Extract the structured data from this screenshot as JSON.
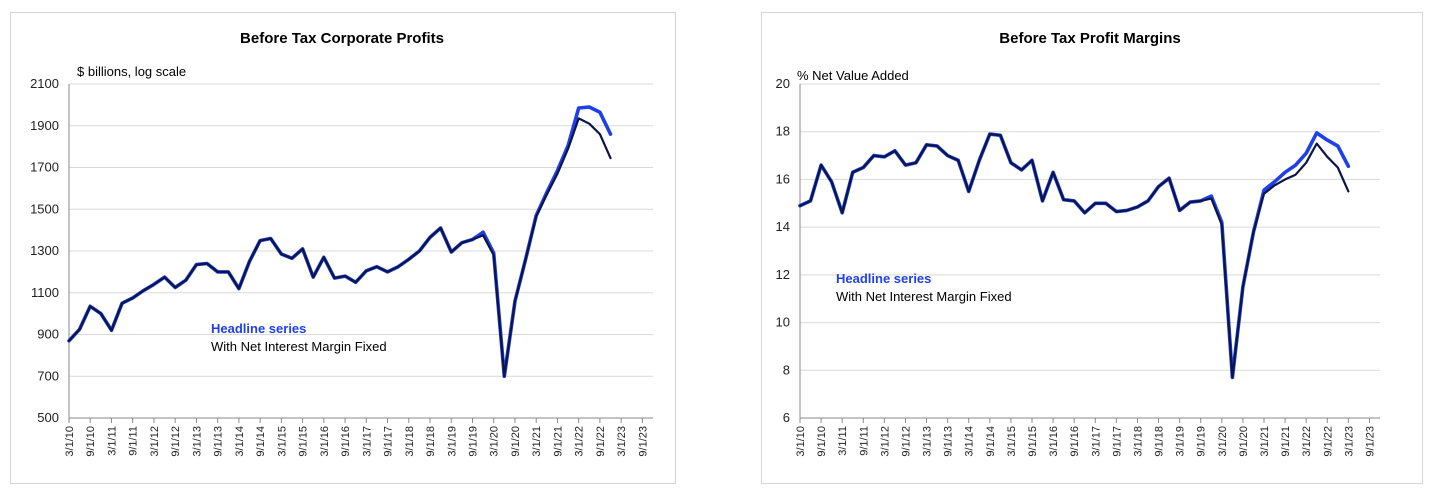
{
  "colors": {
    "headline": "#1f3fe8",
    "fixed": "#000000",
    "overlap": "#0b1546",
    "grid": "#d9d9d9"
  },
  "chart_data": [
    {
      "type": "line",
      "title": "Before Tax Corporate Profits",
      "unit_label": "$ billions, log scale",
      "ylim": [
        500,
        2100
      ],
      "yticks": [
        "500",
        "700",
        "900",
        "1100",
        "1300",
        "1500",
        "1700",
        "1900",
        "2100"
      ],
      "grid": true,
      "x_tick_labels": [
        "3/1/10",
        "9/1/10",
        "3/1/11",
        "9/1/11",
        "3/1/12",
        "9/1/12",
        "3/1/13",
        "9/1/13",
        "3/1/14",
        "9/1/14",
        "3/1/15",
        "9/1/15",
        "3/1/16",
        "9/1/16",
        "3/1/17",
        "9/1/17",
        "3/1/18",
        "9/1/18",
        "3/1/19",
        "9/1/19",
        "3/1/20",
        "9/1/20",
        "3/1/21",
        "9/1/21",
        "3/1/22",
        "9/1/22",
        "3/1/23",
        "9/1/23"
      ],
      "x": [
        "2010Q1",
        "2010Q2",
        "2010Q3",
        "2010Q4",
        "2011Q1",
        "2011Q2",
        "2011Q3",
        "2011Q4",
        "2012Q1",
        "2012Q2",
        "2012Q3",
        "2012Q4",
        "2013Q1",
        "2013Q2",
        "2013Q3",
        "2013Q4",
        "2014Q1",
        "2014Q2",
        "2014Q3",
        "2014Q4",
        "2015Q1",
        "2015Q2",
        "2015Q3",
        "2015Q4",
        "2016Q1",
        "2016Q2",
        "2016Q3",
        "2016Q4",
        "2017Q1",
        "2017Q2",
        "2017Q3",
        "2017Q4",
        "2018Q1",
        "2018Q2",
        "2018Q3",
        "2018Q4",
        "2019Q1",
        "2019Q2",
        "2019Q3",
        "2019Q4",
        "2020Q1",
        "2020Q2",
        "2020Q3",
        "2020Q4",
        "2021Q1",
        "2021Q2",
        "2021Q3",
        "2021Q4",
        "2022Q1",
        "2022Q2",
        "2022Q3",
        "2022Q4",
        "2023Q1"
      ],
      "legend": {
        "headline": "Headline series",
        "fixed": "With Net Interest Margin Fixed"
      },
      "series": [
        {
          "name": "Headline series",
          "values": [
            870,
            925,
            1035,
            1000,
            920,
            1050,
            1075,
            1110,
            1140,
            1175,
            1125,
            1160,
            1235,
            1240,
            1200,
            1200,
            1120,
            1250,
            1350,
            1360,
            1285,
            1265,
            1310,
            1175,
            1270,
            1170,
            1180,
            1150,
            1205,
            1225,
            1200,
            1225,
            1260,
            1300,
            1365,
            1410,
            1295,
            1340,
            1355,
            1390,
            1290,
            700,
            1060,
            1260,
            1470,
            1580,
            1685,
            1805,
            1985,
            1990,
            1965,
            1860,
            null
          ]
        },
        {
          "name": "With Net Interest Margin Fixed",
          "values": [
            870,
            925,
            1035,
            1000,
            920,
            1050,
            1075,
            1110,
            1140,
            1175,
            1125,
            1160,
            1235,
            1240,
            1200,
            1200,
            1120,
            1250,
            1350,
            1360,
            1285,
            1265,
            1310,
            1175,
            1270,
            1170,
            1180,
            1150,
            1205,
            1225,
            1200,
            1225,
            1260,
            1300,
            1365,
            1410,
            1295,
            1340,
            1355,
            1375,
            1280,
            700,
            1060,
            1260,
            1465,
            1570,
            1670,
            1790,
            1935,
            1910,
            1860,
            1745,
            null
          ]
        }
      ]
    },
    {
      "type": "line",
      "title": "Before Tax Profit Margins",
      "unit_label": "% Net Value Added",
      "ylim": [
        6,
        20
      ],
      "yticks": [
        "6",
        "8",
        "10",
        "12",
        "14",
        "16",
        "18",
        "20"
      ],
      "grid": true,
      "x_tick_labels": [
        "3/1/10",
        "9/1/10",
        "3/1/11",
        "9/1/11",
        "3/1/12",
        "9/1/12",
        "3/1/13",
        "9/1/13",
        "3/1/14",
        "9/1/14",
        "3/1/15",
        "9/1/15",
        "3/1/16",
        "9/1/16",
        "3/1/17",
        "9/1/17",
        "3/1/18",
        "9/1/18",
        "3/1/19",
        "9/1/19",
        "3/1/20",
        "9/1/20",
        "3/1/21",
        "9/1/21",
        "3/1/22",
        "9/1/22",
        "3/1/23",
        "9/1/23"
      ],
      "x": [
        "2010Q1",
        "2010Q2",
        "2010Q3",
        "2010Q4",
        "2011Q1",
        "2011Q2",
        "2011Q3",
        "2011Q4",
        "2012Q1",
        "2012Q2",
        "2012Q3",
        "2012Q4",
        "2013Q1",
        "2013Q2",
        "2013Q3",
        "2013Q4",
        "2014Q1",
        "2014Q2",
        "2014Q3",
        "2014Q4",
        "2015Q1",
        "2015Q2",
        "2015Q3",
        "2015Q4",
        "2016Q1",
        "2016Q2",
        "2016Q3",
        "2016Q4",
        "2017Q1",
        "2017Q2",
        "2017Q3",
        "2017Q4",
        "2018Q1",
        "2018Q2",
        "2018Q3",
        "2018Q4",
        "2019Q1",
        "2019Q2",
        "2019Q3",
        "2019Q4",
        "2020Q1",
        "2020Q2",
        "2020Q3",
        "2020Q4",
        "2021Q1",
        "2021Q2",
        "2021Q3",
        "2021Q4",
        "2022Q1",
        "2022Q2",
        "2022Q3",
        "2022Q4",
        "2023Q1"
      ],
      "legend": {
        "headline": "Headline series",
        "fixed": "With Net Interest Margin Fixed"
      },
      "series": [
        {
          "name": "Headline series",
          "values": [
            14.9,
            15.1,
            16.6,
            15.9,
            14.6,
            16.3,
            16.5,
            17.0,
            16.95,
            17.2,
            16.6,
            16.7,
            17.45,
            17.4,
            17.0,
            16.8,
            15.5,
            16.8,
            17.9,
            17.85,
            16.7,
            16.4,
            16.8,
            15.1,
            16.3,
            15.15,
            15.1,
            14.6,
            15.0,
            15.0,
            14.65,
            14.7,
            14.85,
            15.1,
            15.7,
            16.05,
            14.7,
            15.05,
            15.1,
            15.3,
            14.2,
            7.7,
            11.5,
            13.8,
            15.55,
            15.9,
            16.3,
            16.6,
            17.1,
            17.95,
            17.65,
            17.4,
            16.55
          ]
        },
        {
          "name": "With Net Interest Margin Fixed",
          "values": [
            14.9,
            15.1,
            16.6,
            15.9,
            14.6,
            16.3,
            16.5,
            17.0,
            16.95,
            17.2,
            16.6,
            16.7,
            17.45,
            17.4,
            17.0,
            16.8,
            15.5,
            16.8,
            17.9,
            17.85,
            16.7,
            16.4,
            16.8,
            15.1,
            16.3,
            15.15,
            15.1,
            14.6,
            15.0,
            15.0,
            14.65,
            14.7,
            14.85,
            15.1,
            15.7,
            16.05,
            14.7,
            15.05,
            15.1,
            15.2,
            14.1,
            7.7,
            11.5,
            13.8,
            15.4,
            15.75,
            16.0,
            16.2,
            16.7,
            17.5,
            16.95,
            16.5,
            15.5
          ]
        }
      ]
    }
  ]
}
